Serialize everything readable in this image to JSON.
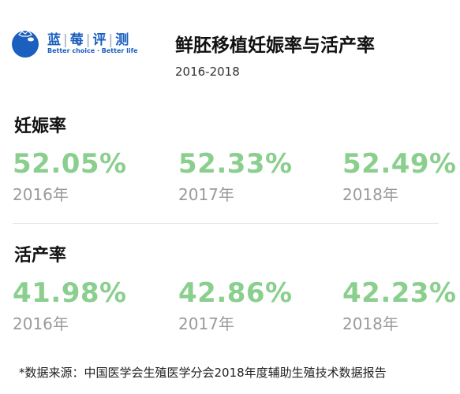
{
  "brand": {
    "name_chars": [
      "蓝",
      "莓",
      "评",
      "测"
    ],
    "tagline": "Better choice · Better life",
    "colors": {
      "primary": "#1b5fbf",
      "value_green": "#8acf8e",
      "year_gray": "#9a9a9a"
    }
  },
  "title": "鲜胚移植妊娠率与活产率",
  "subtitle": "2016-2018",
  "chart_data": {
    "type": "table",
    "title": "鲜胚移植妊娠率与活产率",
    "subtitle": "2016-2018",
    "categories": [
      "2016年",
      "2017年",
      "2018年"
    ],
    "series": [
      {
        "name": "妊娠率",
        "values": [
          52.05,
          52.33,
          52.49
        ],
        "labels": [
          "52.05%",
          "52.33%",
          "52.49%"
        ]
      },
      {
        "name": "活产率",
        "values": [
          41.98,
          42.86,
          42.23
        ],
        "labels": [
          "41.98%",
          "42.86%",
          "42.23%"
        ]
      }
    ]
  },
  "footnote": "*数据来源：中国医学会生殖医学分会2018年度辅助生殖技术数据报告"
}
